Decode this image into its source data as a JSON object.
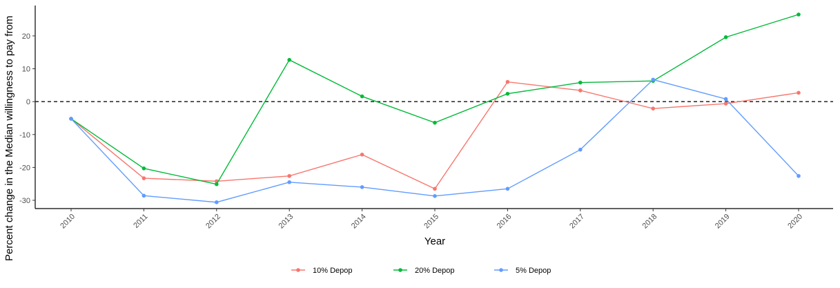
{
  "chart_data": {
    "type": "line",
    "xlabel": "Year",
    "ylabel": "Percent change in the Median willingness to pay from",
    "x": [
      2010,
      2011,
      2012,
      2013,
      2014,
      2015,
      2016,
      2017,
      2018,
      2019,
      2020
    ],
    "xlim": [
      2010,
      2020
    ],
    "ylim": [
      -30,
      26.5
    ],
    "yticks": [
      -30,
      -20,
      -10,
      0,
      10,
      20
    ],
    "reference_line": {
      "y": 0,
      "style": "dashed"
    },
    "grid": false,
    "legend_position": "bottom",
    "series": [
      {
        "name": "10% Depop",
        "color": "#F8766D",
        "values": [
          -5.2,
          -23.3,
          -24.2,
          -22.6,
          -16.1,
          -26.5,
          6.0,
          3.4,
          -2.1,
          -0.6,
          2.7
        ]
      },
      {
        "name": "20% Depop",
        "color": "#00BA38",
        "values": [
          -5.2,
          -20.3,
          -25.1,
          12.7,
          1.6,
          -6.4,
          2.4,
          5.8,
          6.3,
          19.6,
          26.5
        ]
      },
      {
        "name": "5% Depop",
        "color": "#619CFF",
        "values": [
          -5.2,
          -28.6,
          -30.6,
          -24.5,
          -26.0,
          -28.7,
          -26.5,
          -14.6,
          6.7,
          0.8,
          -22.6
        ]
      }
    ]
  }
}
